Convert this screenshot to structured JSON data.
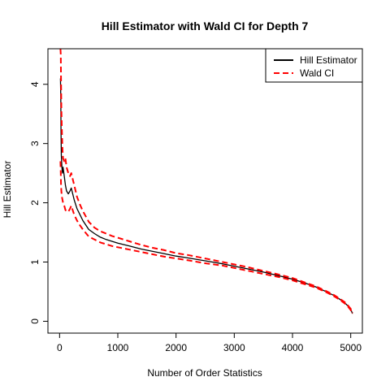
{
  "chart_data": {
    "type": "line",
    "title": "Hill Estimator with Wald CI for Depth 7",
    "xlabel": "Number of Order Statistics",
    "ylabel": "Hill Estimator",
    "xlim": [
      -200,
      5200
    ],
    "ylim": [
      -0.2,
      4.6
    ],
    "xticks": [
      0,
      1000,
      2000,
      3000,
      4000,
      5000
    ],
    "yticks": [
      0,
      1,
      2,
      3,
      4
    ],
    "grid": false,
    "legend_position": "top-right",
    "series": [
      {
        "name": "Hill Estimator",
        "color": "#000000",
        "dash": "solid",
        "x": [
          15,
          20,
          25,
          30,
          40,
          50,
          60,
          80,
          100,
          120,
          150,
          180,
          200,
          250,
          300,
          350,
          400,
          500,
          600,
          700,
          800,
          900,
          1000,
          1200,
          1400,
          1600,
          1800,
          2000,
          2200,
          2500,
          2800,
          3000,
          3200,
          3500,
          3800,
          4000,
          4200,
          4400,
          4600,
          4700,
          4800,
          4900,
          4950,
          5000,
          5030
        ],
        "y": [
          4.1,
          3.8,
          3.2,
          2.8,
          2.6,
          2.5,
          2.6,
          2.45,
          2.3,
          2.2,
          2.15,
          2.2,
          2.25,
          2.05,
          1.9,
          1.8,
          1.7,
          1.55,
          1.48,
          1.42,
          1.38,
          1.35,
          1.32,
          1.27,
          1.22,
          1.18,
          1.14,
          1.1,
          1.07,
          1.02,
          0.97,
          0.93,
          0.89,
          0.83,
          0.76,
          0.71,
          0.65,
          0.58,
          0.49,
          0.44,
          0.38,
          0.31,
          0.26,
          0.2,
          0.13
        ]
      },
      {
        "name": "Wald CI",
        "color": "#ff0000",
        "dash": "dashed",
        "x": [
          15,
          20,
          25,
          30,
          40,
          50,
          60,
          80,
          100,
          120,
          150,
          180,
          200,
          250,
          300,
          350,
          400,
          500,
          600,
          700,
          800,
          900,
          1000,
          1200,
          1400,
          1600,
          1800,
          2000,
          2200,
          2500,
          2800,
          3000,
          3200,
          3500,
          3800,
          4000,
          4200,
          4400,
          4600,
          4700,
          4800,
          4900,
          4950,
          5000,
          5030
        ],
        "y": [
          4.6,
          4.5,
          4.1,
          3.6,
          3.2,
          2.9,
          2.75,
          2.7,
          2.75,
          2.6,
          2.5,
          2.45,
          2.5,
          2.3,
          2.1,
          1.97,
          1.86,
          1.68,
          1.58,
          1.52,
          1.48,
          1.44,
          1.41,
          1.35,
          1.29,
          1.24,
          1.2,
          1.15,
          1.12,
          1.06,
          1.0,
          0.96,
          0.92,
          0.85,
          0.78,
          0.73,
          0.66,
          0.59,
          0.5,
          0.45,
          0.39,
          0.32,
          0.27,
          0.21,
          0.14
        ]
      },
      {
        "color": "#ff0000",
        "dash": "dashed",
        "x": [
          15,
          20,
          25,
          30,
          40,
          50,
          60,
          80,
          100,
          120,
          150,
          180,
          200,
          250,
          300,
          350,
          400,
          500,
          600,
          700,
          800,
          900,
          1000,
          1200,
          1400,
          1600,
          1800,
          2000,
          2200,
          2500,
          2800,
          3000,
          3200,
          3500,
          3800,
          4000,
          4200,
          4400,
          4600,
          4700,
          4800,
          4900,
          4950,
          5000,
          5030
        ],
        "y": [
          2.7,
          2.5,
          2.3,
          2.2,
          2.1,
          2.05,
          2.0,
          1.95,
          1.88,
          1.85,
          1.85,
          1.9,
          1.95,
          1.8,
          1.7,
          1.62,
          1.55,
          1.43,
          1.38,
          1.33,
          1.3,
          1.27,
          1.25,
          1.21,
          1.17,
          1.13,
          1.09,
          1.06,
          1.03,
          0.98,
          0.94,
          0.9,
          0.86,
          0.8,
          0.74,
          0.69,
          0.63,
          0.57,
          0.48,
          0.43,
          0.37,
          0.3,
          0.25,
          0.19,
          0.12
        ]
      }
    ]
  }
}
